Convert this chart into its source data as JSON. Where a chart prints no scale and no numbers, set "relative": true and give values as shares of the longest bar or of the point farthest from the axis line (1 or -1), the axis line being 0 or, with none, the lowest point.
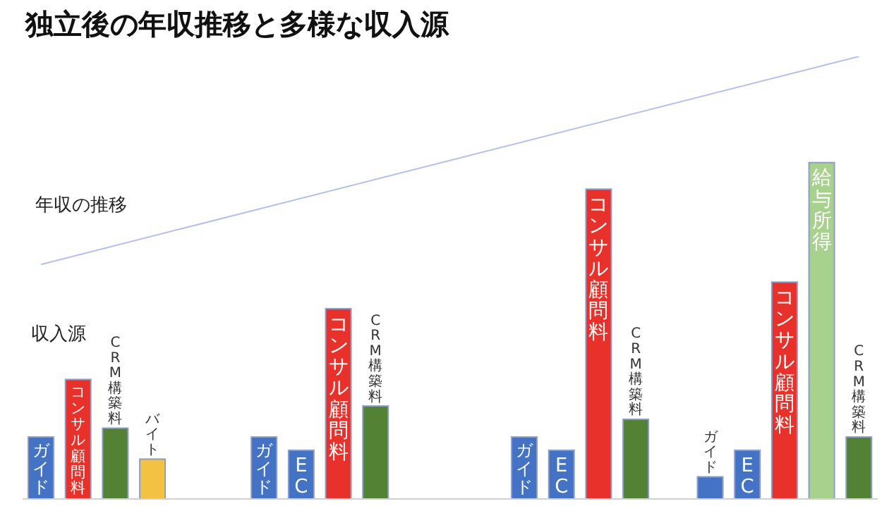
{
  "chart_data": {
    "type": "bar",
    "title": "独立後の年収推移と多様な収入源",
    "relative": true,
    "legend": false,
    "grid": false,
    "annotations": [
      "収入源"
    ],
    "categories": [
      "ガイド",
      "コンサル顧問料",
      "CRM構築料",
      "バイト",
      null,
      null,
      "ガイド",
      "EC",
      "コンサル顧問料",
      "CRM構築料",
      null,
      null,
      null,
      "ガイド",
      "EC",
      "コンサル顧問料",
      "CRM構築料",
      null,
      "ガイド",
      "EC",
      "コンサル顧問料",
      "給与所得",
      "CRM構築料"
    ],
    "series": [
      {
        "colors": [
          "#4472c4",
          "#e8312a",
          "#548235",
          "#f4c242",
          null,
          null,
          "#4472c4",
          "#4472c4",
          "#e8312a",
          "#548235",
          null,
          null,
          null,
          "#4472c4",
          "#4472c4",
          "#e8312a",
          "#548235",
          null,
          "#4472c4",
          "#4472c4",
          "#e8312a",
          "#a9d18e",
          "#548235"
        ],
        "values": [
          0.14,
          0.27,
          0.16,
          0.09,
          null,
          null,
          0.14,
          0.11,
          0.43,
          0.21,
          null,
          null,
          null,
          0.14,
          0.11,
          0.7,
          0.18,
          null,
          0.05,
          0.11,
          0.49,
          0.76,
          0.14
        ]
      },
      {
        "type": "line",
        "name": "年収の推移",
        "color": "#b4c0ec",
        "values": [
          0.53,
          null,
          null,
          null,
          null,
          null,
          null,
          null,
          null,
          null,
          null,
          null,
          null,
          null,
          null,
          null,
          null,
          null,
          null,
          null,
          null,
          null,
          1
        ]
      }
    ]
  }
}
